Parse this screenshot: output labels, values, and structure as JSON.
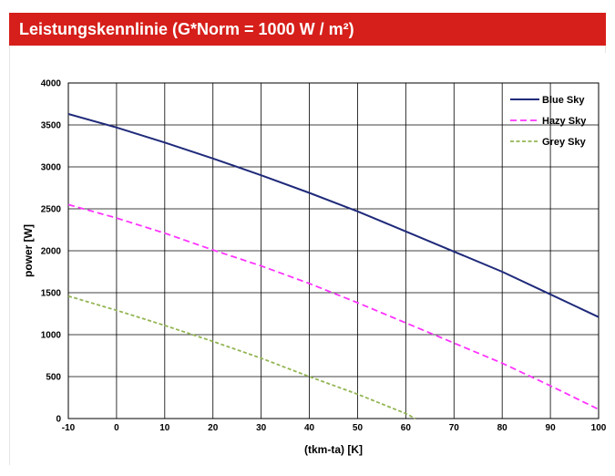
{
  "header": {
    "title": "Leistungskennlinie (G*Norm = 1000 W / m²)",
    "background_color": "#d61f1a"
  },
  "chart_data": {
    "type": "line",
    "title": "",
    "xlabel": "(tkm-ta) [K]",
    "ylabel": "power [W]",
    "xlim": [
      -10,
      100
    ],
    "ylim": [
      0,
      4000
    ],
    "xticks": [
      -10,
      0,
      10,
      20,
      30,
      40,
      50,
      60,
      70,
      80,
      90,
      100
    ],
    "yticks": [
      0,
      500,
      1000,
      1500,
      2000,
      2500,
      3000,
      3500,
      4000
    ],
    "grid": true,
    "legend_position": "top-right",
    "series": [
      {
        "name": "Blue Sky",
        "color": "#1f2a7a",
        "style": "solid",
        "x": [
          -10,
          0,
          10,
          20,
          30,
          40,
          50,
          60,
          70,
          80,
          90,
          100
        ],
        "y": [
          3630,
          3470,
          3290,
          3100,
          2900,
          2690,
          2470,
          2230,
          1990,
          1750,
          1480,
          1210
        ]
      },
      {
        "name": "Hazy Sky",
        "color": "#ff33ff",
        "style": "dashed",
        "x": [
          -10,
          0,
          10,
          20,
          30,
          40,
          50,
          60,
          70,
          80,
          90,
          100
        ],
        "y": [
          2550,
          2390,
          2210,
          2010,
          1820,
          1610,
          1380,
          1140,
          900,
          660,
          390,
          110
        ]
      },
      {
        "name": "Grey Sky",
        "color": "#93b553",
        "style": "dashed",
        "x": [
          -10,
          0,
          10,
          20,
          30,
          40,
          50,
          60,
          62
        ],
        "y": [
          1460,
          1290,
          1110,
          920,
          720,
          500,
          290,
          60,
          0
        ]
      }
    ]
  }
}
